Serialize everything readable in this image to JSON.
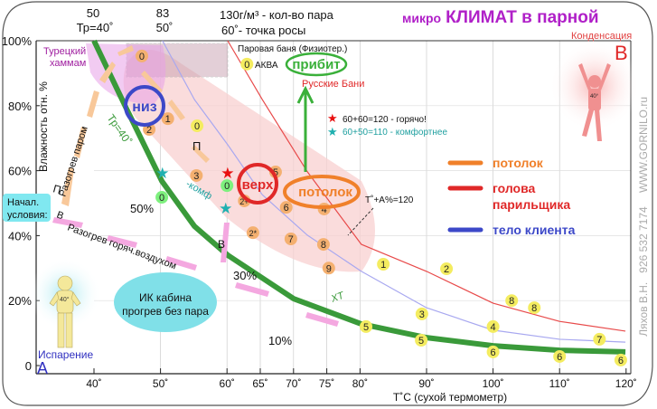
{
  "title": {
    "small": "микро",
    "big": "КЛИМАТ в парной",
    "color": "#b020c8"
  },
  "top_labels": {
    "t50_a": "50",
    "t50_b": "Тр=40˚",
    "t83_a": "83",
    "t83_b": "50˚",
    "vapor_a": "130г/м³ - кол-во пара",
    "vapor_b": "60˚- точка росы"
  },
  "corner_labels": {
    "condensation": "Конденсация",
    "B": "B",
    "evaporation": "Испарение",
    "A": "A",
    "website": "WWW.GORNILO.ru",
    "author": "Ляхов В.Н.   926 532 7174"
  },
  "annotations": {
    "hammam": "Турецкий\nхаммам",
    "steam_bath": "Паровая баня (Физиотер.)",
    "aqua": "АКВА",
    "pribit": "прибит",
    "russian": "Русские  Бани",
    "hot": "60+60=120 - горячо!",
    "comfort": "60+50=110 - комфортнее",
    "niz": "низ",
    "verh": "верх",
    "potolok_oval": "потолок",
    "t_plus_a": "Т˚+А%=120",
    "tr40": "Тр=40˚",
    "komf": "-комф",
    "xt": "ХТ",
    "p1": "П",
    "p2": "П",
    "v1": "В",
    "v2": "В",
    "steam_heat": "Разогрев паром",
    "air_heat": "Разогрев горяч.воздухом",
    "init_a": "Начал.",
    "init_b": "условия:",
    "ik_a": "ИК кабина",
    "ik_b": "прогрев без пара",
    "pct50": "50%",
    "pct30": "30%",
    "pct10": "10%",
    "figure_temp_a": "40°",
    "figure_temp_b": "40°"
  },
  "legend": [
    {
      "label": "потолок",
      "color": "#f0802a"
    },
    {
      "label": "голова\nпарильщика",
      "color": "#e02828"
    },
    {
      "label": "тело клиента",
      "color": "#3c48c8"
    }
  ],
  "chart_data": {
    "type": "line",
    "xlabel": "Т˚С (сухой термометр)",
    "ylabel": "Влажность отн. %",
    "xlim": [
      40,
      120
    ],
    "ylim": [
      0,
      100
    ],
    "x_ticks": [
      "40˚",
      "50˚",
      "60˚",
      "65˚",
      "70˚",
      "75˚",
      "80˚",
      "90˚",
      "100˚",
      "110˚",
      "120˚"
    ],
    "x_tick_values": [
      40,
      50,
      60,
      65,
      70,
      75,
      80,
      90,
      100,
      110,
      120
    ],
    "y_ticks": [
      "100%",
      "80%",
      "60%",
      "40%",
      "20%",
      "0"
    ],
    "y_tick_values": [
      100,
      80,
      60,
      40,
      20,
      0
    ],
    "grid": true,
    "series": [
      {
        "color": "#3a9a3a",
        "points": [
          [
            40,
            100
          ],
          [
            44.9,
            79
          ],
          [
            50.2,
            56.8
          ],
          [
            55.1,
            42.9
          ],
          [
            60.1,
            34
          ],
          [
            70,
            20.6
          ],
          [
            80.2,
            12.8
          ],
          [
            90,
            8.6
          ],
          [
            100,
            6.1
          ],
          [
            110,
            4.7
          ],
          [
            119.9,
            4.2
          ]
        ]
      },
      {
        "color": "#a8a8f0",
        "points": [
          [
            50.3,
            100
          ],
          [
            55.1,
            81.9
          ],
          [
            60.1,
            68
          ],
          [
            65.3,
            52.6
          ],
          [
            72.1,
            40.1
          ],
          [
            80.2,
            29
          ],
          [
            90,
            17.8
          ],
          [
            100,
            10.9
          ],
          [
            110,
            8.1
          ],
          [
            119.9,
            7.2
          ]
        ]
      },
      {
        "color": "#e84a4a",
        "points": [
          [
            60.1,
            100
          ],
          [
            65.3,
            81.9
          ],
          [
            72.1,
            59.6
          ],
          [
            80.2,
            37.3
          ],
          [
            90,
            29
          ],
          [
            100,
            19.2
          ],
          [
            110,
            13.6
          ],
          [
            119.9,
            10.6
          ]
        ]
      }
    ],
    "markers": [
      {
        "label": "0",
        "t": 47.2,
        "h": 95.3,
        "kind": "orange"
      },
      {
        "label": "1",
        "t": 51.1,
        "h": 76,
        "kind": "orange"
      },
      {
        "label": "2",
        "t": 48.3,
        "h": 72.7,
        "kind": "orange"
      },
      {
        "label": "0",
        "t": 55.5,
        "h": 73.8,
        "kind": "yellow"
      },
      {
        "label": "3",
        "t": 55.4,
        "h": 58.5,
        "kind": "orange"
      },
      {
        "label": "0",
        "t": 60,
        "h": 55.4,
        "kind": "green"
      },
      {
        "label": "0",
        "t": 50.2,
        "h": 51.8,
        "kind": "green"
      },
      {
        "label": "5",
        "t": 67.3,
        "h": 59.6,
        "kind": "orange"
      },
      {
        "label": "2+",
        "t": 62.6,
        "h": 50.7,
        "kind": "orange"
      },
      {
        "label": "6",
        "t": 68.9,
        "h": 48.7,
        "kind": "orange"
      },
      {
        "label": "4",
        "t": 74.6,
        "h": 48.2,
        "kind": "orange"
      },
      {
        "label": "2*",
        "t": 63.9,
        "h": 40.9,
        "kind": "orange"
      },
      {
        "label": "7",
        "t": 69.6,
        "h": 39,
        "kind": "orange"
      },
      {
        "label": "8",
        "t": 74.5,
        "h": 37.3,
        "kind": "orange"
      },
      {
        "label": "9",
        "t": 75.3,
        "h": 30,
        "kind": "orange"
      },
      {
        "label": "1",
        "t": 83.5,
        "h": 31.2,
        "kind": "yellow"
      },
      {
        "label": "2",
        "t": 93,
        "h": 29.8,
        "kind": "yellow"
      },
      {
        "label": "8",
        "t": 102.8,
        "h": 20,
        "kind": "yellow"
      },
      {
        "label": "8",
        "t": 106.2,
        "h": 17.8,
        "kind": "yellow"
      },
      {
        "label": "3",
        "t": 89.3,
        "h": 15.9,
        "kind": "yellow"
      },
      {
        "label": "4",
        "t": 100,
        "h": 12,
        "kind": "yellow"
      },
      {
        "label": "5",
        "t": 80.9,
        "h": 12,
        "kind": "yellow"
      },
      {
        "label": "5",
        "t": 89.2,
        "h": 7.8,
        "kind": "yellow"
      },
      {
        "label": "7",
        "t": 116,
        "h": 8.1,
        "kind": "yellow"
      },
      {
        "label": "6",
        "t": 100,
        "h": 4.2,
        "kind": "yellow"
      },
      {
        "label": "6",
        "t": 110,
        "h": 2.8,
        "kind": "yellow"
      },
      {
        "label": "6",
        "t": 119.2,
        "h": 1.7,
        "kind": "yellow"
      },
      {
        "label": "0",
        "t": 63,
        "h": 92.8,
        "kind": "yellow"
      }
    ],
    "stars": [
      {
        "t": 60.1,
        "h": 59.3,
        "color": "#e81010"
      },
      {
        "t": 50.3,
        "h": 59.3,
        "color": "#20b0b0"
      },
      {
        "t": 59.8,
        "h": 48.5,
        "color": "#20b0b0"
      }
    ]
  }
}
